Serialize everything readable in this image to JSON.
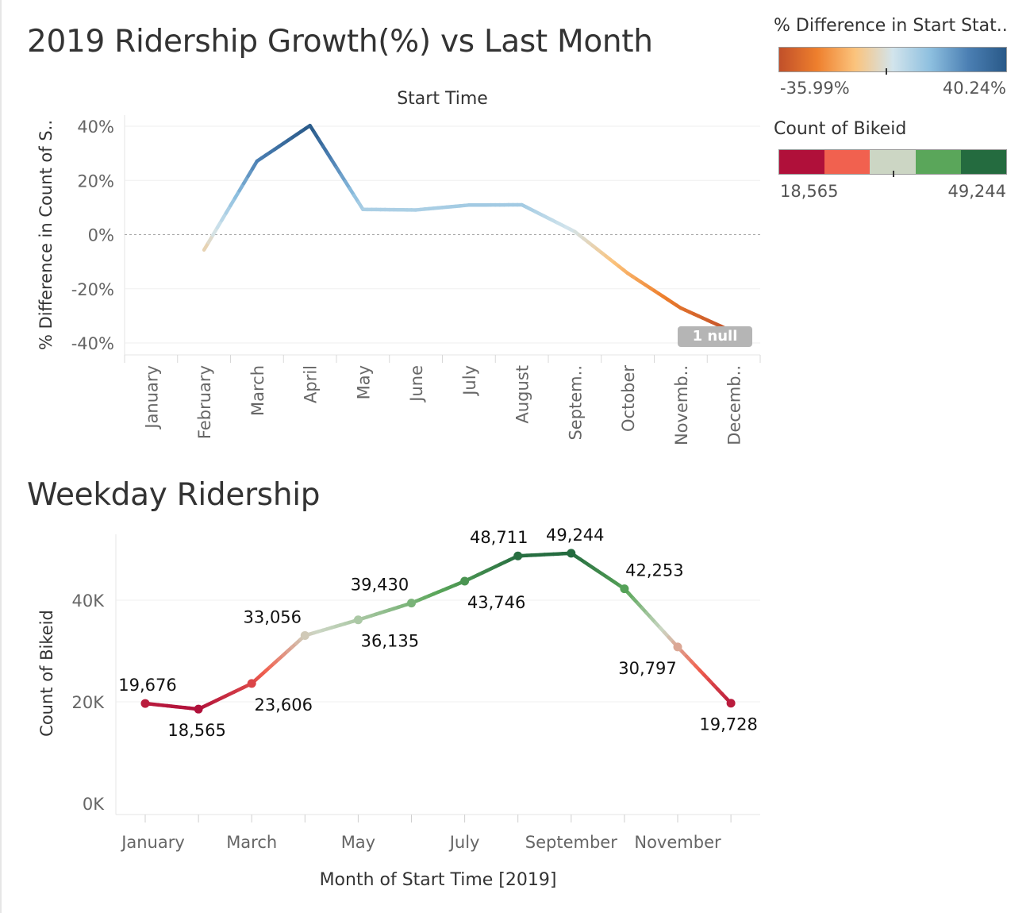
{
  "chart_data": [
    {
      "type": "line",
      "title": "2019 Ridership Growth(%) vs Last Month",
      "subtitle": "Start Time",
      "ylabel": "% Difference in Count of S..",
      "xlabel": "",
      "ylim": [
        -40,
        40
      ],
      "yticks": [
        {
          "value": 40,
          "label": "40%"
        },
        {
          "value": 20,
          "label": "20%"
        },
        {
          "value": 0,
          "label": "0%"
        },
        {
          "value": -20,
          "label": "-20%"
        },
        {
          "value": -40,
          "label": "-40%"
        }
      ],
      "categories": [
        "January",
        "February",
        "March",
        "April",
        "May",
        "June",
        "July",
        "August",
        "Septem..",
        "October",
        "Novemb..",
        "Decemb.."
      ],
      "values": [
        null,
        -5.65,
        27.1,
        40.24,
        9.3,
        9.1,
        10.9,
        11.0,
        1.1,
        -14.3,
        -27.1,
        -35.99
      ],
      "null_indicator": "1 null",
      "grid": true,
      "zero_line": "dashed"
    },
    {
      "type": "line",
      "title": "Weekday Ridership",
      "ylabel": "Count of Bikeid",
      "xlabel": "Month of Start Time [2019]",
      "ylim": [
        0,
        52000
      ],
      "yticks": [
        {
          "value": 0,
          "label": "0K"
        },
        {
          "value": 20000,
          "label": "20K"
        },
        {
          "value": 40000,
          "label": "40K"
        }
      ],
      "categories": [
        "January",
        "February",
        "March",
        "April",
        "May",
        "June",
        "July",
        "August",
        "September",
        "October",
        "November",
        "December"
      ],
      "x_tick_labels": [
        "January",
        "March",
        "May",
        "July",
        "September",
        "November"
      ],
      "values": [
        19676,
        18565,
        23606,
        33056,
        36135,
        39430,
        43746,
        48711,
        49244,
        42253,
        30797,
        19728
      ],
      "data_labels": [
        "19,676",
        "18,565",
        "23,606",
        "33,056",
        "36,135",
        "39,430",
        "43,746",
        "48,711",
        "49,244",
        "42,253",
        "30,797",
        "19,728"
      ],
      "grid": true
    }
  ],
  "legends": {
    "pct_diff": {
      "title": "% Difference in Start Stat..",
      "min_label": "-35.99%",
      "max_label": "40.24%",
      "min": -35.99,
      "max": 40.24,
      "colors": [
        "#c1502a",
        "#ee7f2d",
        "#fbc37c",
        "#d2e4ec",
        "#8dbfdf",
        "#4b7fb3",
        "#295988"
      ]
    },
    "count_bikeid": {
      "title": "Count of Bikeid",
      "min_label": "18,565",
      "max_label": "49,244",
      "min": 18565,
      "max": 49244,
      "colors": [
        "#b0103a",
        "#f1614f",
        "#ccd6c4",
        "#5aa65a",
        "#246b3f"
      ]
    }
  }
}
